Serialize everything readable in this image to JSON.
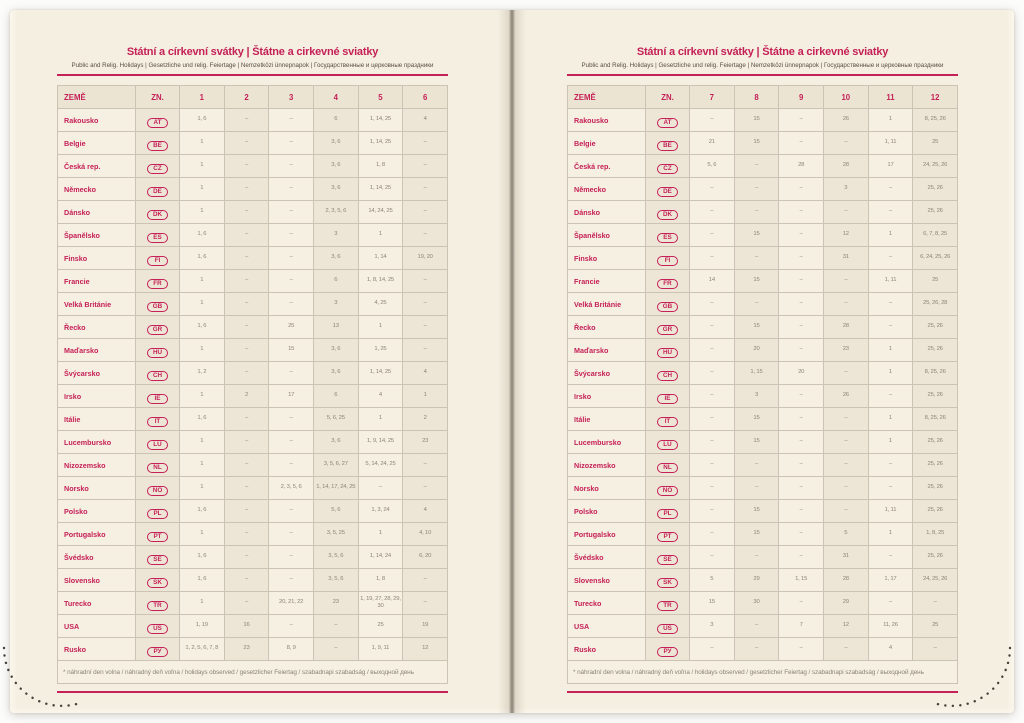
{
  "book": {
    "title": "Státní a církevní svátky | Štátne a cirkevné sviatky",
    "subtitle": "Public and Relig. Holidays | Gesetzliche und relig. Feiertage | Nemzetközi ünnepnapok | Государственные и церковные праздники",
    "footnote": "* náhradní den volna / náhradný deň voľna / holidays observed / gesetzlicher Feiertag / szabadnapi szabadság / выходной день",
    "country_col_label": "ZEMĚ",
    "code_col_label": "ZN.",
    "accent_color": "#c52057",
    "page_color": "#f5efe1",
    "shade_color": "#ede6d6",
    "grid_color": "#cdc3b4",
    "value_text_color": "#8c8577"
  },
  "left_page": {
    "months": [
      "1",
      "2",
      "3",
      "4",
      "5",
      "6"
    ],
    "rows": [
      {
        "country": "Rakousko",
        "code": "AT",
        "values": [
          "1, 6",
          "–",
          "–",
          "6",
          "1, 14, 25",
          "4"
        ]
      },
      {
        "country": "Belgie",
        "code": "BE",
        "values": [
          "1",
          "–",
          "–",
          "3, 6",
          "1, 14, 25",
          "–"
        ]
      },
      {
        "country": "Česká rep.",
        "code": "CZ",
        "values": [
          "1",
          "–",
          "–",
          "3, 6",
          "1, 8",
          "–"
        ]
      },
      {
        "country": "Německo",
        "code": "DE",
        "values": [
          "1",
          "–",
          "–",
          "3, 6",
          "1, 14, 25",
          "–"
        ]
      },
      {
        "country": "Dánsko",
        "code": "DK",
        "values": [
          "1",
          "–",
          "–",
          "2, 3, 5, 6",
          "14, 24, 25",
          "–"
        ]
      },
      {
        "country": "Španělsko",
        "code": "ES",
        "values": [
          "1, 6",
          "–",
          "–",
          "3",
          "1",
          "–"
        ]
      },
      {
        "country": "Finsko",
        "code": "FI",
        "values": [
          "1, 6",
          "–",
          "–",
          "3, 6",
          "1, 14",
          "19, 20"
        ]
      },
      {
        "country": "Francie",
        "code": "FR",
        "values": [
          "1",
          "–",
          "–",
          "6",
          "1, 8, 14, 25",
          "–"
        ]
      },
      {
        "country": "Velká Británie",
        "code": "GB",
        "values": [
          "1",
          "–",
          "–",
          "3",
          "4, 25",
          "–"
        ]
      },
      {
        "country": "Řecko",
        "code": "GR",
        "values": [
          "1, 6",
          "–",
          "25",
          "13",
          "1",
          "–"
        ]
      },
      {
        "country": "Maďarsko",
        "code": "HU",
        "values": [
          "1",
          "–",
          "15",
          "3, 6",
          "1, 25",
          "–"
        ]
      },
      {
        "country": "Švýcarsko",
        "code": "CH",
        "values": [
          "1, 2",
          "–",
          "–",
          "3, 6",
          "1, 14, 25",
          "4"
        ]
      },
      {
        "country": "Irsko",
        "code": "IE",
        "values": [
          "1",
          "2",
          "17",
          "6",
          "4",
          "1"
        ]
      },
      {
        "country": "Itálie",
        "code": "IT",
        "values": [
          "1, 6",
          "–",
          "–",
          "5, 6, 25",
          "1",
          "2"
        ]
      },
      {
        "country": "Lucembursko",
        "code": "LU",
        "values": [
          "1",
          "–",
          "–",
          "3, 6",
          "1, 9, 14, 25",
          "23"
        ]
      },
      {
        "country": "Nizozemsko",
        "code": "NL",
        "values": [
          "1",
          "–",
          "–",
          "3, 5, 6, 27",
          "5, 14, 24, 25",
          "–"
        ]
      },
      {
        "country": "Norsko",
        "code": "NO",
        "values": [
          "1",
          "–",
          "2, 3, 5, 6",
          "1, 14, 17, 24, 25",
          "–",
          "–"
        ]
      },
      {
        "country": "Polsko",
        "code": "PL",
        "values": [
          "1, 6",
          "–",
          "–",
          "5, 6",
          "1, 3, 24",
          "4"
        ]
      },
      {
        "country": "Portugalsko",
        "code": "PT",
        "values": [
          "1",
          "–",
          "–",
          "3, 5, 25",
          "1",
          "4, 10"
        ]
      },
      {
        "country": "Švédsko",
        "code": "SE",
        "values": [
          "1, 6",
          "–",
          "–",
          "3, 5, 6",
          "1, 14, 24",
          "6, 20"
        ]
      },
      {
        "country": "Slovensko",
        "code": "SK",
        "values": [
          "1, 6",
          "–",
          "–",
          "3, 5, 6",
          "1, 8",
          "–"
        ]
      },
      {
        "country": "Turecko",
        "code": "TR",
        "values": [
          "1",
          "–",
          "20, 21, 22",
          "23",
          "1, 19, 27, 28, 29, 30",
          "–"
        ]
      },
      {
        "country": "USA",
        "code": "US",
        "values": [
          "1, 19",
          "16",
          "–",
          "–",
          "25",
          "19"
        ]
      },
      {
        "country": "Rusko",
        "code": "РУ",
        "values": [
          "1, 2, 5, 6, 7, 8",
          "23",
          "8, 9",
          "–",
          "1, 9, 11",
          "12"
        ]
      }
    ]
  },
  "right_page": {
    "months": [
      "7",
      "8",
      "9",
      "10",
      "11",
      "12"
    ],
    "rows": [
      {
        "country": "Rakousko",
        "code": "AT",
        "values": [
          "–",
          "15",
          "–",
          "26",
          "1",
          "8, 25, 26"
        ]
      },
      {
        "country": "Belgie",
        "code": "BE",
        "values": [
          "21",
          "15",
          "–",
          "–",
          "1, 11",
          "25"
        ]
      },
      {
        "country": "Česká rep.",
        "code": "CZ",
        "values": [
          "5, 6",
          "–",
          "28",
          "28",
          "17",
          "24, 25, 26"
        ]
      },
      {
        "country": "Německo",
        "code": "DE",
        "values": [
          "–",
          "–",
          "–",
          "3",
          "–",
          "25, 26"
        ]
      },
      {
        "country": "Dánsko",
        "code": "DK",
        "values": [
          "–",
          "–",
          "–",
          "–",
          "–",
          "25, 26"
        ]
      },
      {
        "country": "Španělsko",
        "code": "ES",
        "values": [
          "–",
          "15",
          "–",
          "12",
          "1",
          "6, 7, 8, 25"
        ]
      },
      {
        "country": "Finsko",
        "code": "FI",
        "values": [
          "–",
          "–",
          "–",
          "31",
          "–",
          "6, 24, 25, 26"
        ]
      },
      {
        "country": "Francie",
        "code": "FR",
        "values": [
          "14",
          "15",
          "–",
          "–",
          "1, 11",
          "25"
        ]
      },
      {
        "country": "Velká Británie",
        "code": "GB",
        "values": [
          "–",
          "–",
          "–",
          "–",
          "–",
          "25, 26, 28"
        ]
      },
      {
        "country": "Řecko",
        "code": "GR",
        "values": [
          "–",
          "15",
          "–",
          "28",
          "–",
          "25, 26"
        ]
      },
      {
        "country": "Maďarsko",
        "code": "HU",
        "values": [
          "–",
          "20",
          "–",
          "23",
          "1",
          "25, 26"
        ]
      },
      {
        "country": "Švýcarsko",
        "code": "CH",
        "values": [
          "–",
          "1, 15",
          "20",
          "–",
          "1",
          "8, 25, 26"
        ]
      },
      {
        "country": "Irsko",
        "code": "IE",
        "values": [
          "–",
          "3",
          "–",
          "26",
          "–",
          "25, 26"
        ]
      },
      {
        "country": "Itálie",
        "code": "IT",
        "values": [
          "–",
          "15",
          "–",
          "–",
          "1",
          "8, 25, 26"
        ]
      },
      {
        "country": "Lucembursko",
        "code": "LU",
        "values": [
          "–",
          "15",
          "–",
          "–",
          "1",
          "25, 26"
        ]
      },
      {
        "country": "Nizozemsko",
        "code": "NL",
        "values": [
          "–",
          "–",
          "–",
          "–",
          "–",
          "25, 26"
        ]
      },
      {
        "country": "Norsko",
        "code": "NO",
        "values": [
          "–",
          "–",
          "–",
          "–",
          "–",
          "25, 26"
        ]
      },
      {
        "country": "Polsko",
        "code": "PL",
        "values": [
          "–",
          "15",
          "–",
          "–",
          "1, 11",
          "25, 26"
        ]
      },
      {
        "country": "Portugalsko",
        "code": "PT",
        "values": [
          "–",
          "15",
          "–",
          "5",
          "1",
          "1, 8, 25"
        ]
      },
      {
        "country": "Švédsko",
        "code": "SE",
        "values": [
          "–",
          "–",
          "–",
          "31",
          "–",
          "25, 26"
        ]
      },
      {
        "country": "Slovensko",
        "code": "SK",
        "values": [
          "5",
          "29",
          "1, 15",
          "28",
          "1, 17",
          "24, 25, 26"
        ]
      },
      {
        "country": "Turecko",
        "code": "TR",
        "values": [
          "15",
          "30",
          "–",
          "29",
          "–",
          "–"
        ]
      },
      {
        "country": "USA",
        "code": "US",
        "values": [
          "3",
          "–",
          "7",
          "12",
          "11, 26",
          "25"
        ]
      },
      {
        "country": "Rusko",
        "code": "РУ",
        "values": [
          "–",
          "–",
          "–",
          "–",
          "4",
          "–"
        ]
      }
    ]
  }
}
